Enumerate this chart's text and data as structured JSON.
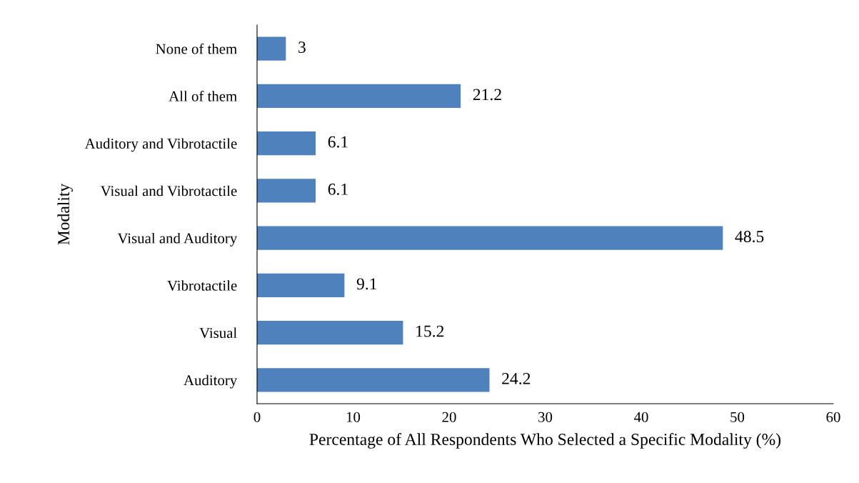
{
  "chart_data": {
    "type": "bar",
    "orientation": "horizontal",
    "xlabel": "Percentage of All Respondents Who Selected a Specific Modality (%)",
    "ylabel": "Modality",
    "categories": [
      "None of them",
      "All of them",
      "Auditory and Vibrotactile",
      "Visual and Vibrotactile",
      "Visual and Auditory",
      "Vibrotactile",
      "Visual",
      "Auditory"
    ],
    "values": [
      3,
      21.2,
      6.1,
      6.1,
      48.5,
      9.1,
      15.2,
      24.2
    ],
    "color": "#4f81bd",
    "xlim": [
      0,
      60
    ],
    "xticks": [
      0,
      10,
      20,
      30,
      40,
      50,
      60
    ],
    "data_labels": true,
    "grid": false,
    "legend": false
  }
}
